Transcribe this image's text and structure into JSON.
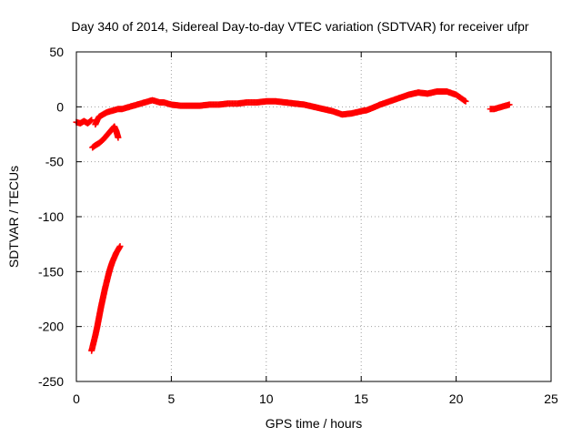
{
  "chart_data": {
    "type": "scatter",
    "title": "Day 340 of 2014, Sidereal Day-to-day VTEC variation (SDTVAR) for receiver ufpr",
    "xlabel": "GPS time / hours",
    "ylabel": "SDTVAR / TECUs",
    "xlim": [
      0,
      25
    ],
    "ylim": [
      -250,
      50
    ],
    "xticks": [
      0,
      5,
      10,
      15,
      20,
      25
    ],
    "yticks": [
      -250,
      -200,
      -150,
      -100,
      -50,
      0,
      50
    ],
    "grid": true,
    "legend": "none",
    "marker": "+",
    "color": "#ff0000",
    "segments": [
      {
        "x": [
          0.0,
          0.2,
          0.4,
          0.6,
          0.8
        ],
        "y": [
          -14,
          -15,
          -13,
          -15,
          -12
        ]
      },
      {
        "x": [
          0.85,
          1.0,
          1.2,
          1.4,
          1.6,
          1.8,
          1.9,
          2.0,
          2.1,
          2.2
        ],
        "y": [
          -37,
          -35,
          -33,
          -30,
          -26,
          -22,
          -20,
          -18,
          -22,
          -28
        ]
      },
      {
        "x": [
          1.0,
          1.1,
          1.2,
          1.4,
          1.6,
          1.8,
          2.0,
          2.2,
          2.4,
          2.6,
          2.8,
          3.0,
          3.2,
          3.4,
          3.6,
          3.8,
          4.0,
          4.2,
          4.4,
          4.6,
          4.8,
          5.0,
          5.5,
          6.0,
          6.5,
          7.0,
          7.5,
          8.0,
          8.5,
          9.0,
          9.5,
          10.0,
          10.5,
          11.0,
          11.5,
          12.0,
          12.5,
          13.0,
          13.5,
          14.0,
          14.5,
          15.0,
          15.3,
          15.6,
          16.0,
          16.5,
          17.0,
          17.5,
          18.0,
          18.5,
          19.0,
          19.5,
          20.0,
          20.5
        ],
        "y": [
          -16,
          -12,
          -9,
          -7,
          -5,
          -4,
          -3,
          -2,
          -2,
          -1,
          0,
          1,
          2,
          3,
          4,
          5,
          6,
          5,
          4,
          4,
          3,
          2,
          1,
          1,
          1,
          2,
          2,
          3,
          3,
          4,
          4,
          5,
          5,
          4,
          3,
          2,
          0,
          -2,
          -4,
          -7,
          -6,
          -4,
          -3,
          -1,
          2,
          5,
          8,
          11,
          13,
          12,
          14,
          14,
          11,
          5
        ]
      },
      {
        "x": [
          0.8,
          0.9,
          1.0,
          1.1,
          1.2,
          1.3,
          1.4,
          1.5,
          1.6,
          1.7,
          1.8,
          1.9,
          2.0,
          2.1,
          2.2,
          2.3
        ],
        "y": [
          -222,
          -215,
          -208,
          -200,
          -191,
          -182,
          -174,
          -166,
          -159,
          -152,
          -146,
          -141,
          -137,
          -133,
          -130,
          -127
        ]
      },
      {
        "x": [
          21.8,
          22.0,
          22.2,
          22.4,
          22.6,
          22.8
        ],
        "y": [
          -2,
          -2,
          -1,
          0,
          1,
          2
        ]
      }
    ]
  }
}
